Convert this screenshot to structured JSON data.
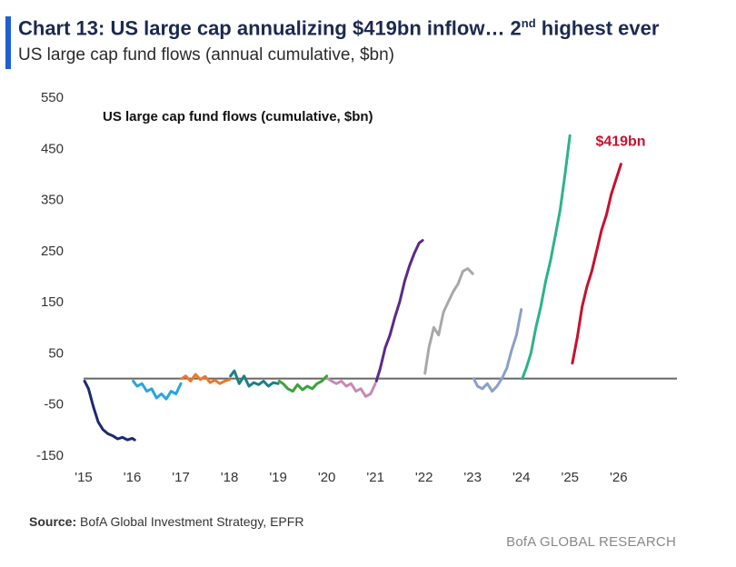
{
  "header": {
    "title_main": "Chart 13: US large cap annualizing $419bn inflow… 2",
    "title_sup": "nd",
    "title_tail": " highest ever",
    "subtitle": "US large cap fund flows (annual cumulative, $bn)",
    "accent_color": "#1f5fd1"
  },
  "chart_data": {
    "type": "line",
    "title": "US large cap fund flows (cumulative, $bn)",
    "xlabel": "",
    "ylabel": "",
    "ylim": [
      -150,
      550
    ],
    "yticks": [
      550,
      450,
      350,
      250,
      150,
      50,
      -50,
      -150
    ],
    "xlim": [
      2015,
      2027.2
    ],
    "xtick_values": [
      2015,
      2016,
      2017,
      2018,
      2019,
      2020,
      2021,
      2022,
      2023,
      2024,
      2025,
      2026
    ],
    "xtick_labels": [
      "'15",
      "'16",
      "'17",
      "'18",
      "'19",
      "'20",
      "'21",
      "'22",
      "'23",
      "'24",
      "'25",
      "'26"
    ],
    "zero_line": 0,
    "annotation": {
      "text": "$419bn",
      "color": "#c8102e"
    },
    "series": [
      {
        "name": "2015",
        "color": "#1c2a70",
        "x": [
          2015.02,
          2015.1,
          2015.2,
          2015.3,
          2015.4,
          2015.5,
          2015.6,
          2015.7,
          2015.8,
          2015.9,
          2016.0,
          2016.05
        ],
        "y": [
          -5,
          -20,
          -55,
          -85,
          -100,
          -108,
          -112,
          -118,
          -115,
          -120,
          -117,
          -120
        ]
      },
      {
        "name": "2016",
        "color": "#2aa4dc",
        "x": [
          2016.02,
          2016.1,
          2016.2,
          2016.3,
          2016.4,
          2016.5,
          2016.6,
          2016.7,
          2016.8,
          2016.9,
          2017.0
        ],
        "y": [
          -5,
          -15,
          -10,
          -25,
          -20,
          -38,
          -30,
          -40,
          -25,
          -30,
          -10
        ]
      },
      {
        "name": "2017",
        "color": "#e8772e",
        "x": [
          2017.02,
          2017.1,
          2017.2,
          2017.3,
          2017.4,
          2017.5,
          2017.6,
          2017.7,
          2017.8,
          2017.9,
          2018.0
        ],
        "y": [
          0,
          5,
          -5,
          8,
          -2,
          4,
          -8,
          -3,
          -10,
          -5,
          -2
        ]
      },
      {
        "name": "2018",
        "color": "#1f7f86",
        "x": [
          2018.02,
          2018.1,
          2018.2,
          2018.3,
          2018.4,
          2018.5,
          2018.6,
          2018.7,
          2018.8,
          2018.9,
          2019.0
        ],
        "y": [
          5,
          15,
          -10,
          5,
          -15,
          -8,
          -12,
          -5,
          -15,
          -8,
          -10
        ]
      },
      {
        "name": "2019",
        "color": "#3aa43a",
        "x": [
          2019.02,
          2019.1,
          2019.2,
          2019.3,
          2019.4,
          2019.5,
          2019.6,
          2019.7,
          2019.8,
          2019.9,
          2020.0
        ],
        "y": [
          -5,
          -10,
          -20,
          -25,
          -12,
          -22,
          -15,
          -20,
          -10,
          -5,
          5
        ]
      },
      {
        "name": "2020",
        "color": "#c78ab4",
        "x": [
          2020.02,
          2020.1,
          2020.2,
          2020.3,
          2020.4,
          2020.5,
          2020.6,
          2020.7,
          2020.8,
          2020.9,
          2021.0
        ],
        "y": [
          0,
          -5,
          -10,
          -5,
          -15,
          -10,
          -25,
          -20,
          -35,
          -30,
          -10
        ]
      },
      {
        "name": "2021",
        "color": "#5b2a86",
        "x": [
          2021.02,
          2021.1,
          2021.2,
          2021.3,
          2021.4,
          2021.5,
          2021.6,
          2021.7,
          2021.8,
          2021.9,
          2021.97
        ],
        "y": [
          -5,
          20,
          60,
          85,
          120,
          150,
          190,
          220,
          245,
          265,
          270
        ]
      },
      {
        "name": "2022",
        "color": "#a8a8a8",
        "x": [
          2022.02,
          2022.1,
          2022.2,
          2022.3,
          2022.4,
          2022.5,
          2022.6,
          2022.7,
          2022.8,
          2022.9,
          2023.0
        ],
        "y": [
          10,
          60,
          100,
          85,
          130,
          150,
          170,
          185,
          210,
          215,
          205
        ]
      },
      {
        "name": "2023",
        "color": "#8aa0c8",
        "x": [
          2023.02,
          2023.1,
          2023.2,
          2023.3,
          2023.4,
          2023.5,
          2023.6,
          2023.7,
          2023.8,
          2023.9,
          2024.0
        ],
        "y": [
          0,
          -15,
          -20,
          -10,
          -25,
          -15,
          0,
          20,
          55,
          85,
          135
        ]
      },
      {
        "name": "2024",
        "color": "#2bb38a",
        "x": [
          2024.02,
          2024.1,
          2024.2,
          2024.3,
          2024.4,
          2024.5,
          2024.6,
          2024.7,
          2024.8,
          2024.9,
          2025.0
        ],
        "y": [
          0,
          20,
          50,
          100,
          140,
          190,
          230,
          280,
          330,
          400,
          475
        ]
      },
      {
        "name": "2025",
        "color": "#c8102e",
        "x": [
          2025.05,
          2025.15,
          2025.25,
          2025.35,
          2025.45,
          2025.55,
          2025.65,
          2025.75,
          2025.85,
          2025.95,
          2026.05
        ],
        "y": [
          30,
          80,
          140,
          180,
          210,
          250,
          290,
          320,
          360,
          390,
          419
        ]
      }
    ]
  },
  "footer": {
    "source_label": "Source:",
    "source_text": " BofA Global Investment Strategy, EPFR",
    "brand": "BofA GLOBAL RESEARCH"
  }
}
